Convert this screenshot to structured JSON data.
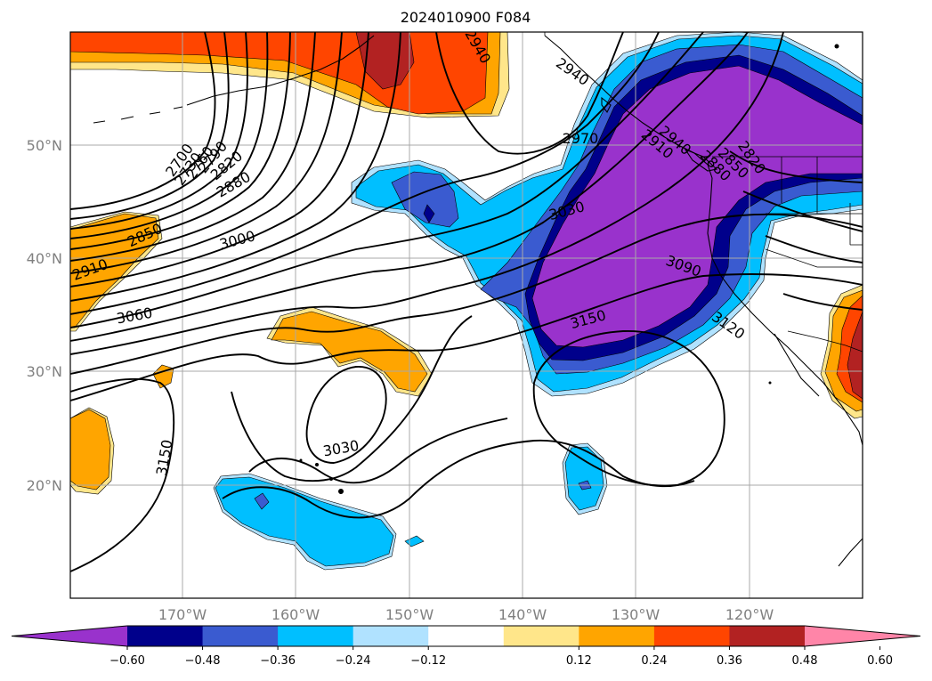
{
  "title": "2024010900 F084",
  "map": {
    "lat_labels": [
      "50°N",
      "40°N",
      "30°N",
      "20°N"
    ],
    "lon_labels": [
      "170°W",
      "160°W",
      "150°W",
      "140°W",
      "130°W",
      "120°W"
    ],
    "gridlines": true
  },
  "contour_labels": [
    "2700",
    "2730",
    "2760",
    "2790",
    "2820",
    "2850",
    "2880",
    "2910",
    "2940",
    "2940",
    "2940",
    "2970",
    "3000",
    "3030",
    "3030",
    "3060",
    "3090",
    "3120",
    "3150",
    "3150",
    "2910",
    "2880",
    "2850",
    "2820"
  ],
  "colorbar": {
    "ticks": [
      "−0.60",
      "−0.48",
      "−0.36",
      "−0.24",
      "−0.12",
      "0.12",
      "0.24",
      "0.36",
      "0.48",
      "0.60"
    ],
    "colors": [
      "#9932cc",
      "#00008b",
      "#3a5bd0",
      "#00bfff",
      "#b0e2ff",
      "#ffffff",
      "#ffe68a",
      "#ffa500",
      "#ff4500",
      "#b22222",
      "#ff85a8"
    ],
    "extend": "both"
  },
  "colors": {
    "purple": "#9932cc",
    "navy": "#00008b",
    "royal": "#3a5bd0",
    "sky": "#00bfff",
    "lightblue": "#b0e2ff",
    "yellow": "#ffe68a",
    "orange": "#ffa500",
    "redorange": "#ff4500",
    "firebrick": "#b22222",
    "pink": "#ff85a8"
  }
}
